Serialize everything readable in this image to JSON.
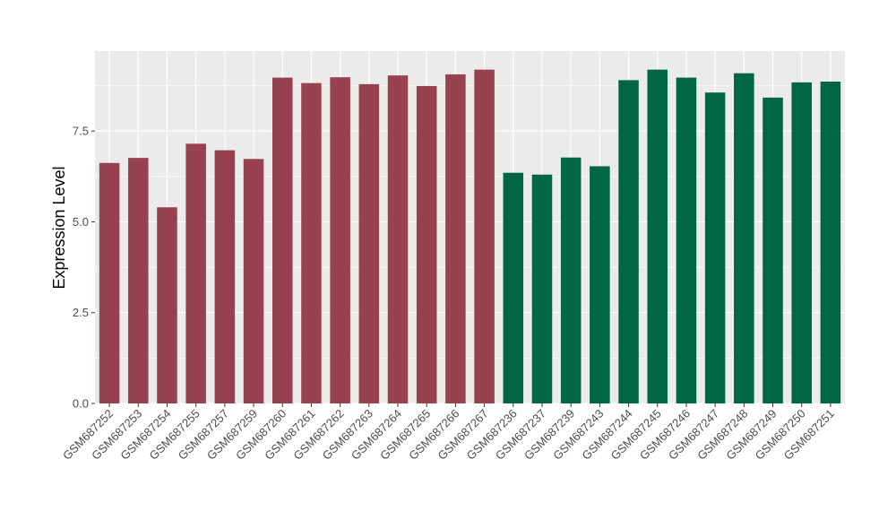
{
  "chart_data": {
    "type": "bar",
    "title": "",
    "xlabel": "",
    "ylabel": "Expression Level",
    "ylim": [
      0,
      9.7
    ],
    "yticks": [
      0.0,
      2.5,
      5.0,
      7.5
    ],
    "ytick_labels": [
      "0.0",
      "2.5",
      "5.0",
      "7.5"
    ],
    "grid": true,
    "legend": "none",
    "categories": [
      "GSM687252",
      "GSM687253",
      "GSM687254",
      "GSM687255",
      "GSM687257",
      "GSM687259",
      "GSM687260",
      "GSM687261",
      "GSM687262",
      "GSM687263",
      "GSM687264",
      "GSM687265",
      "GSM687266",
      "GSM687267",
      "GSM687236",
      "GSM687237",
      "GSM687239",
      "GSM687243",
      "GSM687244",
      "GSM687245",
      "GSM687246",
      "GSM687247",
      "GSM687248",
      "GSM687249",
      "GSM687250",
      "GSM687251"
    ],
    "values": [
      6.62,
      6.76,
      5.4,
      7.15,
      6.97,
      6.73,
      8.97,
      8.82,
      8.98,
      8.79,
      9.03,
      8.74,
      9.06,
      9.19,
      6.35,
      6.3,
      6.77,
      6.53,
      8.9,
      9.19,
      8.97,
      8.56,
      9.09,
      8.42,
      8.84,
      8.86
    ],
    "group_sizes": [
      14,
      12
    ],
    "colors": [
      "#99424f",
      "#006643"
    ],
    "panel_color": "#ebebeb",
    "grid_color": "#ffffff"
  }
}
